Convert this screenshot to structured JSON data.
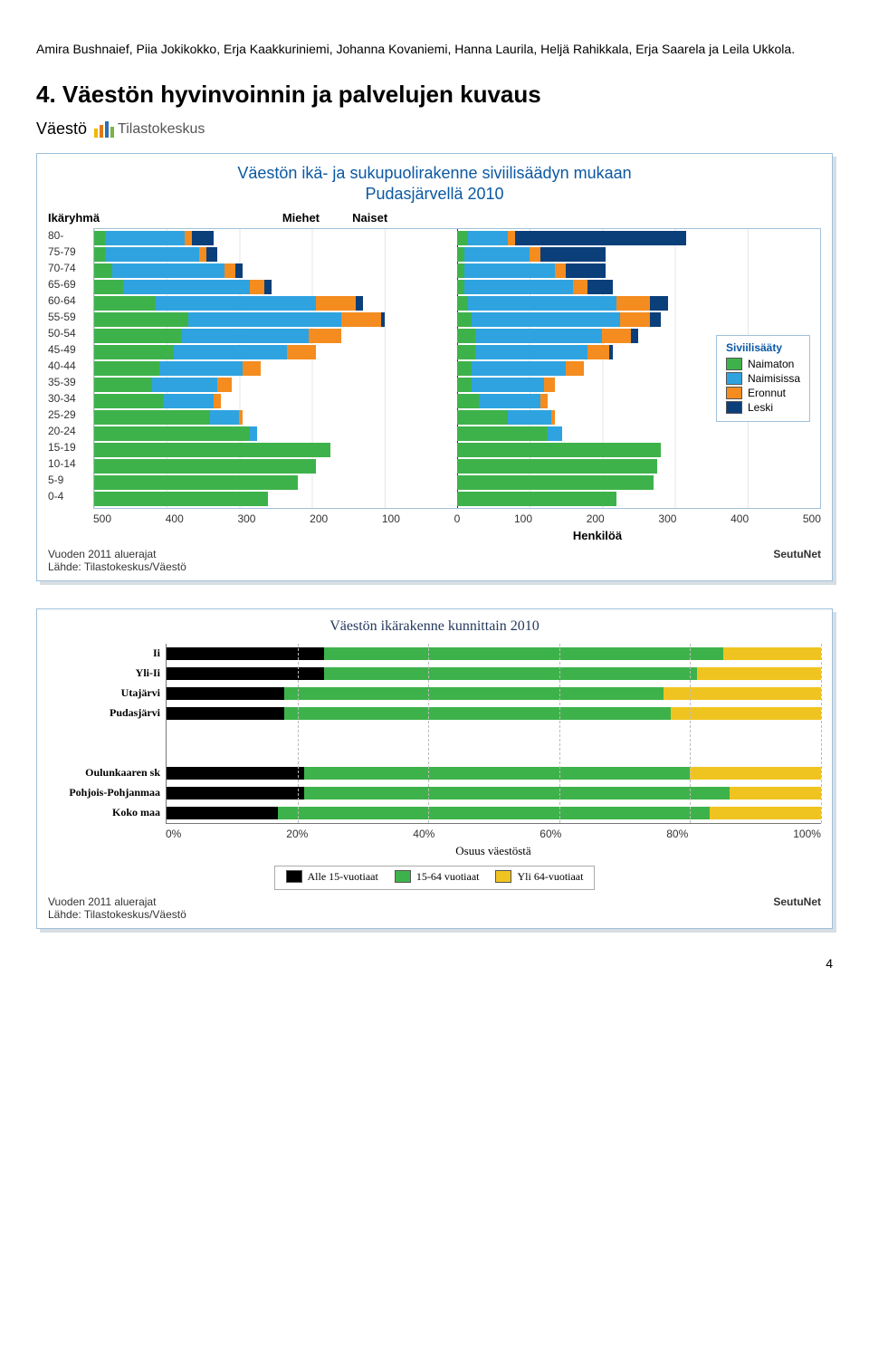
{
  "intro_text": "Amira Bushnaief, Piia Jokikokko, Erja Kaakkuriniemi, Johanna Kovaniemi, Hanna Laurila, Heljä Rahikkala, Erja Saarela ja Leila Ukkola.",
  "section_heading": "4. Väestön hyvinvoinnin ja palvelujen kuvaus",
  "subsection_label": "Väestö",
  "logo_text": "Tilastokeskus",
  "logo_colors": [
    "#f2b705",
    "#e07a16",
    "#2f6db1",
    "#7cb342"
  ],
  "page_number": "4",
  "chart1": {
    "type": "pyramid-stacked-bar",
    "title_line1": "Väestön ikä- ja sukupuolirakenne siviilisäädyn mukaan",
    "title_line2": "Pudasjärvellä 2010",
    "header_left": "Ikäryhmä",
    "header_male": "Miehet",
    "header_female": "Naiset",
    "xaxis_label": "Henkilöä",
    "ylabels": [
      "80-",
      "75-79",
      "70-74",
      "65-69",
      "60-64",
      "55-59",
      "50-54",
      "45-49",
      "40-44",
      "35-39",
      "30-34",
      "25-29",
      "20-24",
      "15-19",
      "10-14",
      "5-9",
      "0-4"
    ],
    "xticks": [
      "500",
      "400",
      "300",
      "200",
      "100",
      "0",
      "100",
      "200",
      "300",
      "400",
      "500"
    ],
    "xmax": 500,
    "colors": {
      "naimaton": "#3eb24a",
      "naimisissa": "#2fa3e0",
      "eronnut": "#f58c1f",
      "leski": "#0b3f7a"
    },
    "legend": {
      "title": "Siviilisääty",
      "items": [
        {
          "label": "Naimaton",
          "color": "#3eb24a"
        },
        {
          "label": "Naimisissa",
          "color": "#2fa3e0"
        },
        {
          "label": "Eronnut",
          "color": "#f58c1f"
        },
        {
          "label": "Leski",
          "color": "#0b3f7a"
        }
      ]
    },
    "rows": [
      {
        "male": {
          "naimaton": 15,
          "naimisissa": 110,
          "eronnut": 10,
          "leski": 30
        },
        "female": {
          "naimaton": 15,
          "naimisissa": 55,
          "eronnut": 10,
          "leski": 235
        }
      },
      {
        "male": {
          "naimaton": 15,
          "naimisissa": 130,
          "eronnut": 10,
          "leski": 15
        },
        "female": {
          "naimaton": 10,
          "naimisissa": 90,
          "eronnut": 15,
          "leski": 90
        }
      },
      {
        "male": {
          "naimaton": 25,
          "naimisissa": 155,
          "eronnut": 15,
          "leski": 10
        },
        "female": {
          "naimaton": 10,
          "naimisissa": 125,
          "eronnut": 15,
          "leski": 55
        }
      },
      {
        "male": {
          "naimaton": 40,
          "naimisissa": 175,
          "eronnut": 20,
          "leski": 10
        },
        "female": {
          "naimaton": 10,
          "naimisissa": 150,
          "eronnut": 20,
          "leski": 35
        }
      },
      {
        "male": {
          "naimaton": 85,
          "naimisissa": 220,
          "eronnut": 55,
          "leski": 10
        },
        "female": {
          "naimaton": 15,
          "naimisissa": 205,
          "eronnut": 45,
          "leski": 25
        }
      },
      {
        "male": {
          "naimaton": 130,
          "naimisissa": 210,
          "eronnut": 55,
          "leski": 5
        },
        "female": {
          "naimaton": 20,
          "naimisissa": 205,
          "eronnut": 40,
          "leski": 15
        }
      },
      {
        "male": {
          "naimaton": 120,
          "naimisissa": 175,
          "eronnut": 45,
          "leski": 0
        },
        "female": {
          "naimaton": 25,
          "naimisissa": 175,
          "eronnut": 40,
          "leski": 10
        }
      },
      {
        "male": {
          "naimaton": 110,
          "naimisissa": 155,
          "eronnut": 40,
          "leski": 0
        },
        "female": {
          "naimaton": 25,
          "naimisissa": 155,
          "eronnut": 30,
          "leski": 5
        }
      },
      {
        "male": {
          "naimaton": 90,
          "naimisissa": 115,
          "eronnut": 25,
          "leski": 0
        },
        "female": {
          "naimaton": 20,
          "naimisissa": 130,
          "eronnut": 25,
          "leski": 0
        }
      },
      {
        "male": {
          "naimaton": 80,
          "naimisissa": 90,
          "eronnut": 20,
          "leski": 0
        },
        "female": {
          "naimaton": 20,
          "naimisissa": 100,
          "eronnut": 15,
          "leski": 0
        }
      },
      {
        "male": {
          "naimaton": 95,
          "naimisissa": 70,
          "eronnut": 10,
          "leski": 0
        },
        "female": {
          "naimaton": 30,
          "naimisissa": 85,
          "eronnut": 10,
          "leski": 0
        }
      },
      {
        "male": {
          "naimaton": 160,
          "naimisissa": 40,
          "eronnut": 5,
          "leski": 0
        },
        "female": {
          "naimaton": 70,
          "naimisissa": 60,
          "eronnut": 5,
          "leski": 0
        }
      },
      {
        "male": {
          "naimaton": 215,
          "naimisissa": 10,
          "eronnut": 0,
          "leski": 0
        },
        "female": {
          "naimaton": 125,
          "naimisissa": 20,
          "eronnut": 0,
          "leski": 0
        }
      },
      {
        "male": {
          "naimaton": 325,
          "naimisissa": 0,
          "eronnut": 0,
          "leski": 0
        },
        "female": {
          "naimaton": 280,
          "naimisissa": 0,
          "eronnut": 0,
          "leski": 0
        }
      },
      {
        "male": {
          "naimaton": 305,
          "naimisissa": 0,
          "eronnut": 0,
          "leski": 0
        },
        "female": {
          "naimaton": 275,
          "naimisissa": 0,
          "eronnut": 0,
          "leski": 0
        }
      },
      {
        "male": {
          "naimaton": 280,
          "naimisissa": 0,
          "eronnut": 0,
          "leski": 0
        },
        "female": {
          "naimaton": 270,
          "naimisissa": 0,
          "eronnut": 0,
          "leski": 0
        }
      },
      {
        "male": {
          "naimaton": 240,
          "naimisissa": 0,
          "eronnut": 0,
          "leski": 0
        },
        "female": {
          "naimaton": 220,
          "naimisissa": 0,
          "eronnut": 0,
          "leski": 0
        }
      }
    ],
    "footer_left_l1": "Vuoden 2011 aluerajat",
    "footer_left_l2": "Lähde: Tilastokeskus/Väestö",
    "footer_right": "SeutuNet"
  },
  "chart2": {
    "type": "stacked-bar-horizontal-100",
    "title": "Väestön ikärakenne kunnittain 2010",
    "xaxis_label": "Osuus väestöstä",
    "xticks": [
      "0%",
      "20%",
      "40%",
      "60%",
      "80%",
      "100%"
    ],
    "colors": {
      "alle15": "#000000",
      "v15_64": "#3eb24a",
      "yli64": "#f0c420"
    },
    "categories_group1": [
      {
        "label": "Ii",
        "alle15": 24,
        "v15_64": 61,
        "yli64": 15
      },
      {
        "label": "Yli-Ii",
        "alle15": 24,
        "v15_64": 57,
        "yli64": 19
      },
      {
        "label": "Utajärvi",
        "alle15": 18,
        "v15_64": 58,
        "yli64": 24
      },
      {
        "label": "Pudasjärvi",
        "alle15": 18,
        "v15_64": 59,
        "yli64": 23
      }
    ],
    "categories_group2": [
      {
        "label": "Oulunkaaren sk",
        "alle15": 21,
        "v15_64": 59,
        "yli64": 20
      },
      {
        "label": "Pohjois-Pohjanmaa",
        "alle15": 21,
        "v15_64": 65,
        "yli64": 14
      },
      {
        "label": "Koko maa",
        "alle15": 17,
        "v15_64": 66,
        "yli64": 17
      }
    ],
    "legend_items": [
      {
        "label": "Alle 15-vuotiaat",
        "color": "#000000"
      },
      {
        "label": "15-64 vuotiaat",
        "color": "#3eb24a"
      },
      {
        "label": "Yli 64-vuotiaat",
        "color": "#f0c420"
      }
    ],
    "footer_left_l1": "Vuoden 2011 aluerajat",
    "footer_left_l2": "Lähde: Tilastokeskus/Väestö",
    "footer_right": "SeutuNet"
  }
}
